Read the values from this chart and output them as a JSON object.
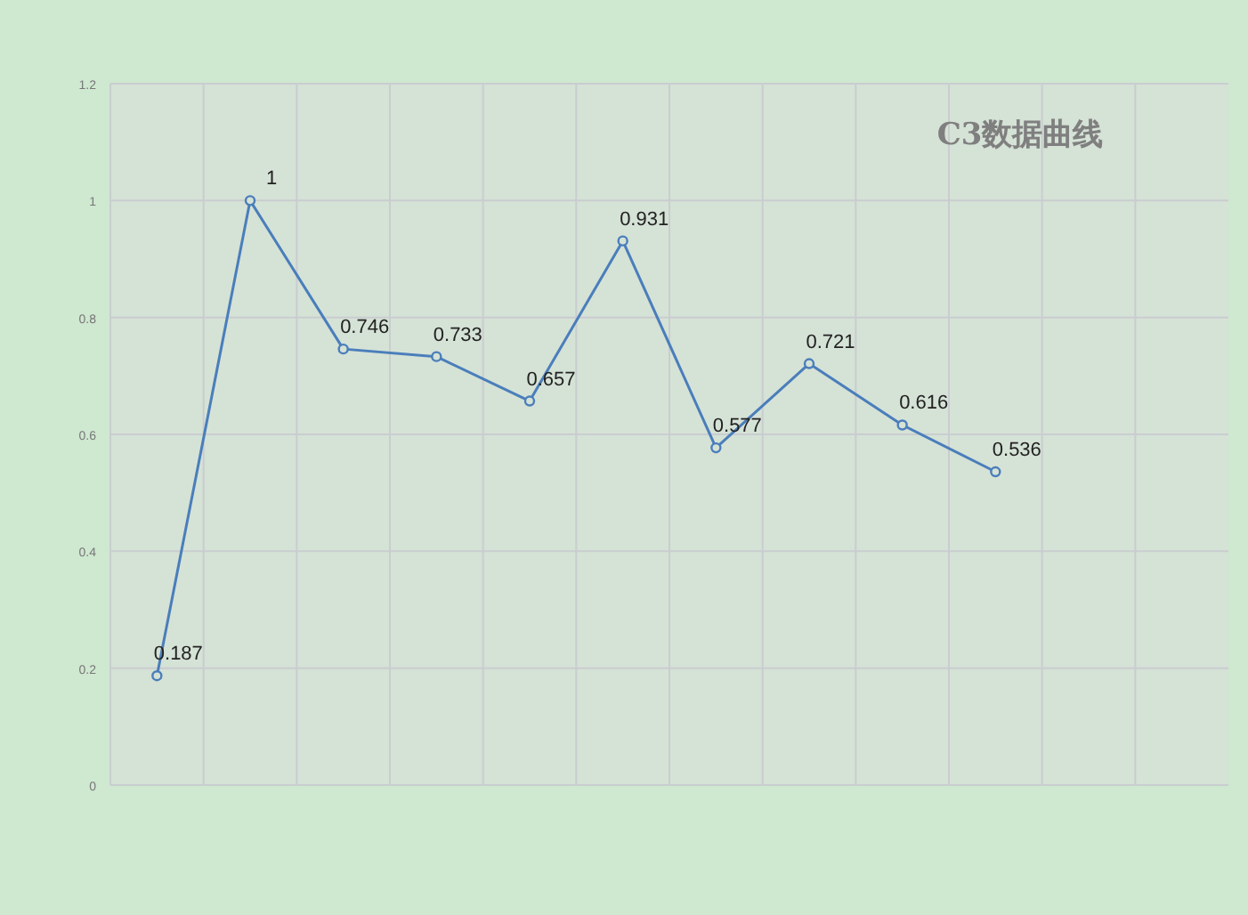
{
  "chart_data": {
    "type": "line",
    "title": "C3数据曲线",
    "categories": [
      null,
      null,
      null,
      null,
      null,
      null,
      null,
      null,
      null,
      null,
      null,
      null
    ],
    "series": [
      {
        "color": "#4a7ebb",
        "values": [
          0.187,
          1,
          0.746,
          0.733,
          0.657,
          0.931,
          0.577,
          0.721,
          0.616,
          0.536,
          null,
          null
        ]
      }
    ],
    "ylim": [
      0,
      1.2
    ],
    "yticks": [
      0,
      0.2,
      0.4,
      0.6,
      0.8,
      1,
      1.2
    ],
    "grid": true,
    "marker": "circle",
    "data_labels": true
  }
}
